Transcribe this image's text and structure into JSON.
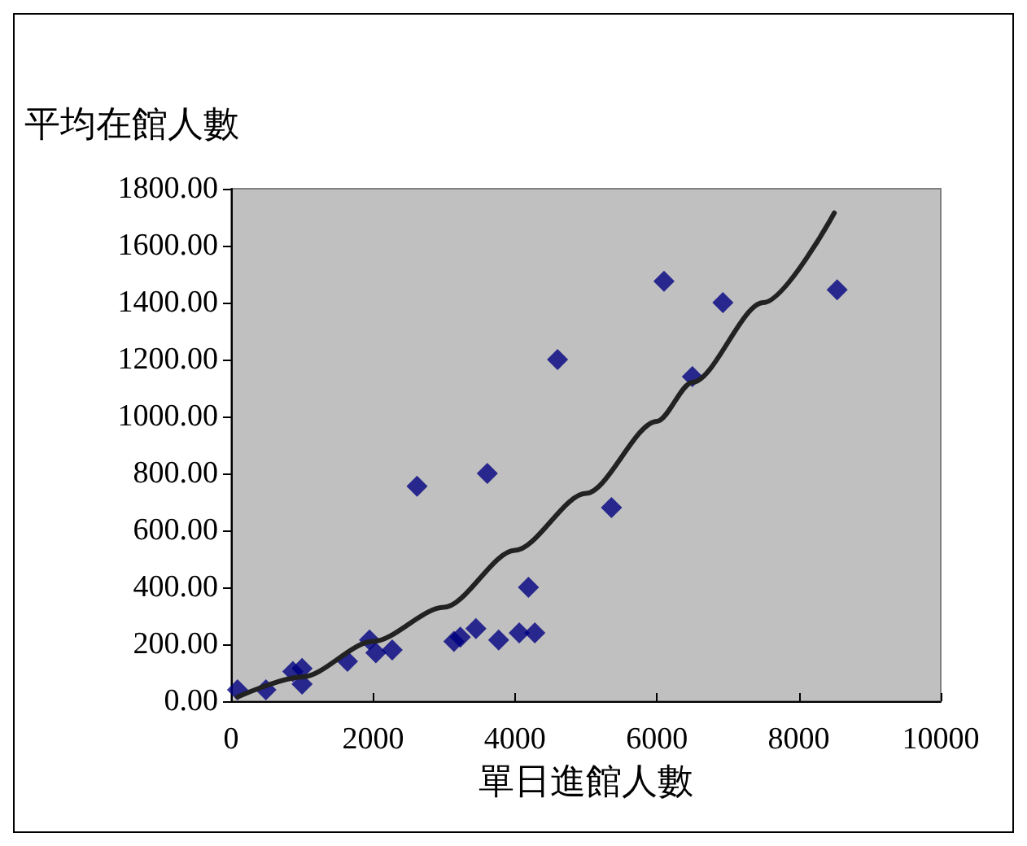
{
  "chart_data": {
    "type": "scatter",
    "xlabel": "單日進館人數",
    "ylabel": "平均在館人數",
    "xlim": [
      0,
      10000
    ],
    "xticks": [
      0,
      2000,
      4000,
      6000,
      8000,
      10000
    ],
    "ylim": [
      0,
      1800
    ],
    "yticks": [
      {
        "value": 0,
        "label": "0.00"
      },
      {
        "value": 200,
        "label": "200.00"
      },
      {
        "value": 400,
        "label": "400.00"
      },
      {
        "value": 600,
        "label": "600.00"
      },
      {
        "value": 800,
        "label": "800.00"
      },
      {
        "value": 1000,
        "label": "1000.00"
      },
      {
        "value": 1200,
        "label": "1200.00"
      },
      {
        "value": 1400,
        "label": "1400.00"
      },
      {
        "value": 1600,
        "label": "1600.00"
      },
      {
        "value": 1800,
        "label": "1800.00"
      }
    ],
    "grid": false,
    "marker": "diamond",
    "series": [
      {
        "color": "#000080",
        "x": [
          90,
          490,
          870,
          1000,
          1000,
          1640,
          1950,
          2040,
          2270,
          2620,
          3140,
          3230,
          3450,
          3610,
          3770,
          4060,
          4190,
          4280,
          4600,
          5360,
          6100,
          6500,
          6930,
          8540
        ],
        "values": [
          40,
          40,
          104,
          115,
          60,
          140,
          215,
          170,
          180,
          755,
          210,
          225,
          255,
          800,
          215,
          240,
          400,
          240,
          1200,
          680,
          1475,
          1140,
          1400,
          1445
        ]
      },
      {
        "type": "line",
        "color": "#222222",
        "marker": "none",
        "line_style": "solid",
        "x": [
          90,
          1000,
          2000,
          3000,
          4000,
          5000,
          6000,
          6500,
          7500,
          8500
        ],
        "values": [
          15,
          85,
          210,
          330,
          530,
          730,
          983,
          1120,
          1400,
          1715
        ]
      }
    ]
  }
}
